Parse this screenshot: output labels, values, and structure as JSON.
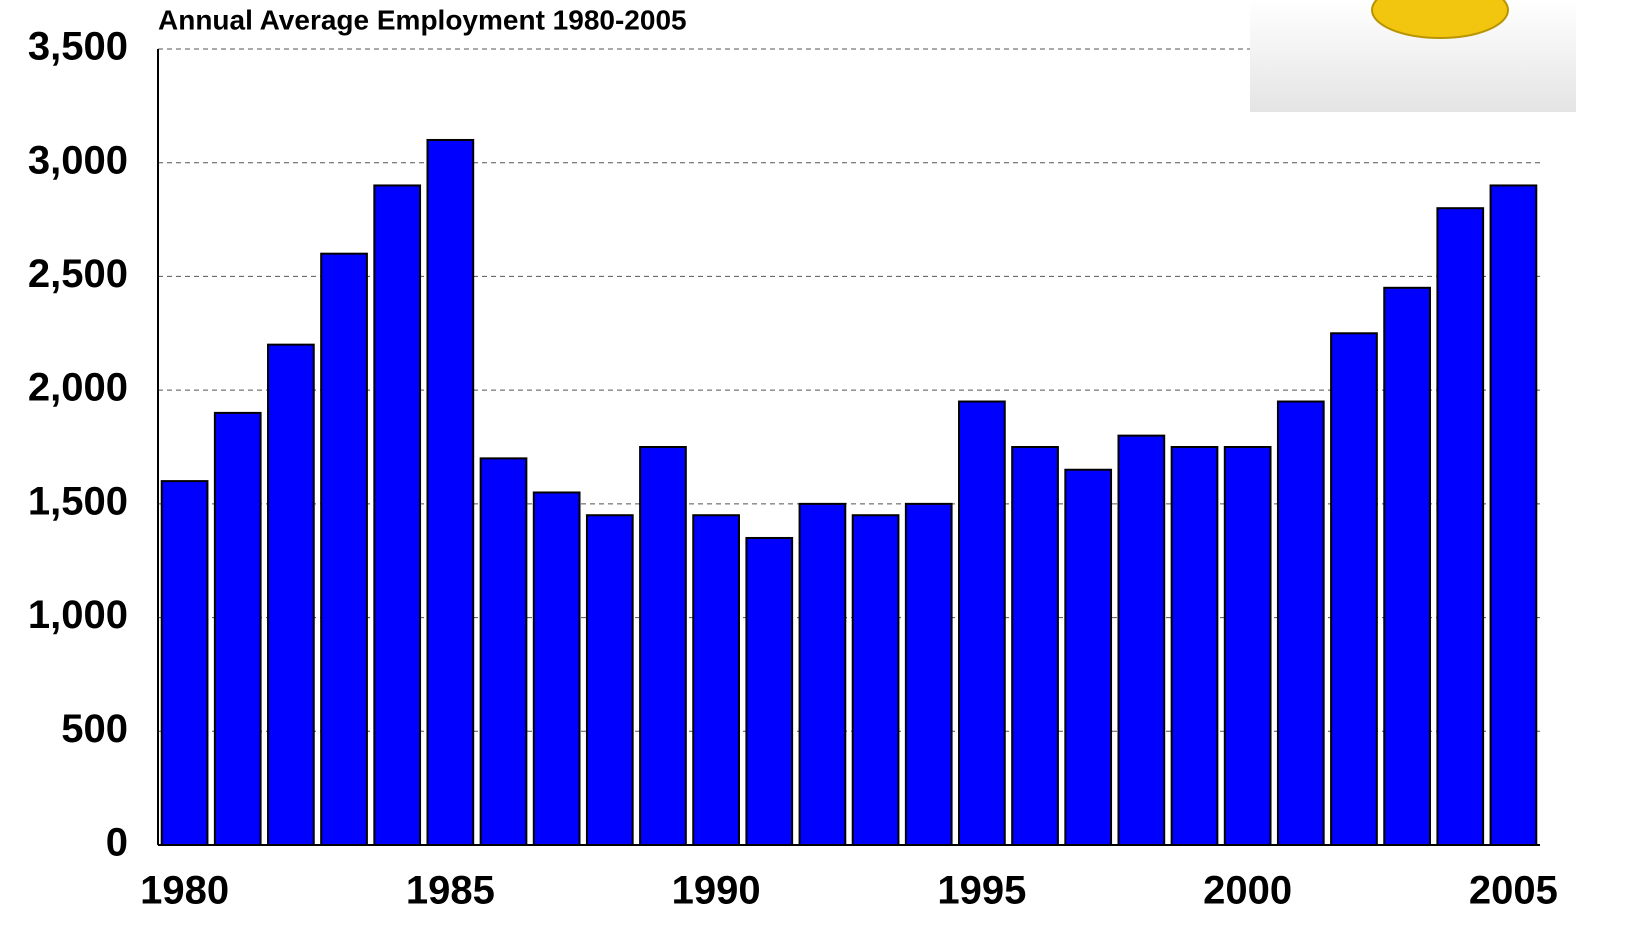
{
  "chart_data": {
    "type": "bar",
    "title": "Annual Average  Employment 1980-2005",
    "categories": [
      "1980",
      null,
      null,
      null,
      null,
      "1985",
      null,
      null,
      null,
      null,
      "1990",
      null,
      null,
      null,
      null,
      "1995",
      null,
      null,
      null,
      null,
      "2000",
      null,
      null,
      null,
      null,
      "2005"
    ],
    "values": [
      1600,
      1900,
      2200,
      2600,
      2900,
      3100,
      1700,
      1550,
      1450,
      1750,
      1450,
      1350,
      1500,
      1450,
      1500,
      1950,
      1750,
      1650,
      1800,
      1750,
      1750,
      1950,
      2250,
      2450,
      2800,
      2900
    ],
    "color": "#0000ff",
    "ylim": [
      0,
      3500
    ],
    "yticks": [
      0,
      500,
      {
        "value": 1000,
        "label": "1,000"
      },
      {
        "value": 1500,
        "label": "1,500"
      },
      {
        "value": 2000,
        "label": "2,000"
      },
      {
        "value": 2500,
        "label": "2,500"
      },
      {
        "value": 3000,
        "label": "3,000"
      },
      {
        "value": 3500,
        "label": "3,500"
      }
    ],
    "grid": true
  }
}
